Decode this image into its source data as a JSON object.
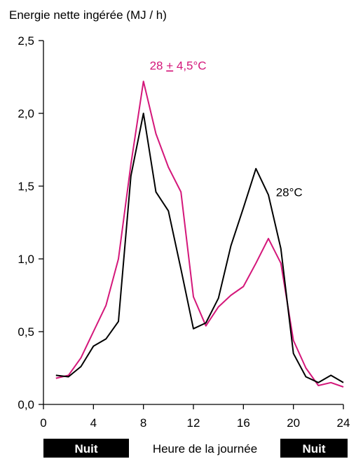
{
  "chart_data": {
    "type": "line",
    "ylabel": "Energie nette ingérée (MJ / h)",
    "xlabel": "Heure de la journée",
    "x": [
      1,
      2,
      3,
      4,
      5,
      6,
      7,
      8,
      9,
      10,
      11,
      12,
      13,
      14,
      15,
      16,
      17,
      18,
      19,
      20,
      21,
      22,
      23,
      24
    ],
    "series": [
      {
        "name": "28 ± 4,5°C",
        "label": [
          "28 ",
          "+",
          " 4,5°C"
        ],
        "color": "#d4177a",
        "values": [
          0.18,
          0.2,
          0.32,
          0.5,
          0.68,
          1.0,
          1.65,
          2.22,
          1.86,
          1.63,
          1.46,
          0.74,
          0.54,
          0.67,
          0.75,
          0.81,
          0.97,
          1.14,
          0.97,
          0.44,
          0.25,
          0.13,
          0.15,
          0.12
        ]
      },
      {
        "name": "28°C",
        "label": [
          "28°C"
        ],
        "color": "#000000",
        "values": [
          0.2,
          0.19,
          0.26,
          0.4,
          0.45,
          0.57,
          1.57,
          2.0,
          1.46,
          1.33,
          0.93,
          0.52,
          0.56,
          0.73,
          1.09,
          1.35,
          1.62,
          1.44,
          1.07,
          0.35,
          0.19,
          0.15,
          0.2,
          0.15
        ]
      }
    ],
    "xlim": [
      0,
      24
    ],
    "ylim": [
      0,
      2.5
    ],
    "x_ticks": [
      0,
      4,
      8,
      12,
      16,
      20,
      24
    ],
    "x_tick_labels": [
      "0",
      "4",
      "8",
      "12",
      "16",
      "20",
      "24"
    ],
    "y_ticks": [
      0,
      0.5,
      1.0,
      1.5,
      2.0,
      2.5
    ],
    "y_tick_labels": [
      "0,0",
      "0,5",
      "1,0",
      "1,5",
      "2,0",
      "2,5"
    ],
    "grid": false,
    "bands": [
      {
        "label": "Nuit"
      },
      {
        "label": "Nuit"
      }
    ]
  }
}
